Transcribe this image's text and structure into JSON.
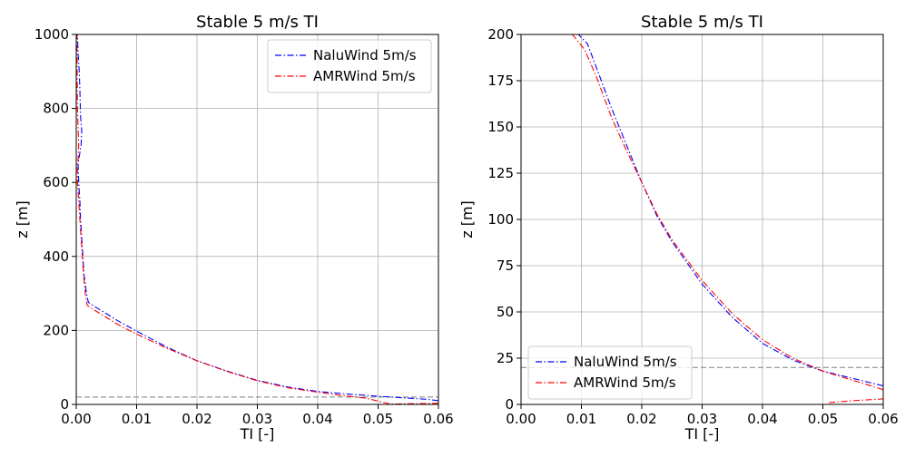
{
  "chart_data": [
    {
      "type": "line",
      "title": "Stable 5 m/s TI",
      "xlabel": "TI [-]",
      "ylabel": "z [m]",
      "xlim": [
        0.0,
        0.06
      ],
      "ylim": [
        0,
        1000
      ],
      "xticks": [
        "0.00",
        "0.01",
        "0.02",
        "0.03",
        "0.04",
        "0.05",
        "0.06"
      ],
      "yticks": [
        "0",
        "200",
        "400",
        "600",
        "800",
        "1000"
      ],
      "grid": true,
      "legend_position": "top-right",
      "reference_line": {
        "z": 20,
        "style": "dashed",
        "color": "#808080"
      },
      "series": [
        {
          "name": "NaluWind 5m/s",
          "color": "#0000ff",
          "style": "dash-dot",
          "x": [
            0.06,
            0.058,
            0.054,
            0.05,
            0.045,
            0.04,
            0.035,
            0.03,
            0.025,
            0.02,
            0.015,
            0.01,
            0.007,
            0.005,
            0.003,
            0.002,
            0.0017,
            0.0013,
            0.0011,
            0.0009,
            0.0007,
            0.0006,
            0.0004,
            0.0003,
            0.0008,
            0.0009,
            0.0007,
            0.0006,
            0.0005,
            0.0003,
            0.0002
          ],
          "y": [
            10,
            14,
            18,
            22,
            28,
            35,
            47,
            65,
            90,
            118,
            155,
            198,
            225,
            245,
            265,
            276,
            300,
            350,
            400,
            450,
            500,
            550,
            600,
            650,
            700,
            740,
            780,
            850,
            900,
            950,
            1000
          ]
        },
        {
          "name": "AMRWind 5m/s",
          "color": "#ff0000",
          "style": "dash-dot",
          "x": [
            0.06,
            0.056,
            0.052,
            0.048,
            0.044,
            0.04,
            0.035,
            0.03,
            0.025,
            0.02,
            0.015,
            0.01,
            0.007,
            0.005,
            0.003,
            0.0018,
            0.0015,
            0.0012,
            0.001,
            0.0008,
            0.0006,
            0.0004,
            0.0002,
            0.0002,
            0.0003,
            0.0004,
            0.0002,
            0.0001
          ],
          "y": [
            3,
            2,
            1,
            17,
            24,
            33,
            45,
            64,
            89,
            118,
            152,
            190,
            215,
            235,
            255,
            268,
            300,
            350,
            400,
            450,
            500,
            550,
            600,
            650,
            660,
            700,
            800,
            1000
          ]
        }
      ]
    },
    {
      "type": "line",
      "title": "Stable 5 m/s TI",
      "xlabel": "TI [-]",
      "ylabel": "z [m]",
      "xlim": [
        0.0,
        0.06
      ],
      "ylim": [
        0,
        200
      ],
      "xticks": [
        "0.00",
        "0.01",
        "0.02",
        "0.03",
        "0.04",
        "0.05",
        "0.06"
      ],
      "yticks": [
        "0",
        "25",
        "50",
        "75",
        "100",
        "125",
        "150",
        "175",
        "200"
      ],
      "grid": true,
      "legend_position": "bottom-left",
      "reference_line": {
        "z": 20,
        "style": "dashed",
        "color": "#808080"
      },
      "series": [
        {
          "name": "NaluWind 5m/s",
          "color": "#0000ff",
          "style": "dash-dot",
          "x": [
            0.06,
            0.055,
            0.05,
            0.045,
            0.04,
            0.035,
            0.03,
            0.025,
            0.0225,
            0.02,
            0.0175,
            0.015,
            0.0125,
            0.011,
            0.0095
          ],
          "y": [
            10,
            14,
            18,
            24,
            33,
            47,
            65,
            88,
            102,
            120,
            140,
            160,
            182,
            195,
            200
          ]
        },
        {
          "name": "AMRWind 5m/s",
          "color": "#ff0000",
          "style": "dash-dot",
          "x": [
            0.06,
            0.055,
            0.05,
            0.045,
            0.04,
            0.035,
            0.03,
            0.025,
            0.0225,
            0.02,
            0.0175,
            0.015,
            0.0125,
            0.0105,
            0.0085
          ],
          "y": [
            8,
            13,
            18,
            25,
            35,
            49,
            67,
            89,
            103,
            120,
            137,
            155,
            177,
            192,
            200
          ]
        },
        {
          "name": "",
          "color": "#ff0000",
          "style": "dash-dot",
          "x": [
            0.051,
            0.055,
            0.06
          ],
          "y": [
            1,
            2,
            3
          ]
        }
      ]
    }
  ]
}
